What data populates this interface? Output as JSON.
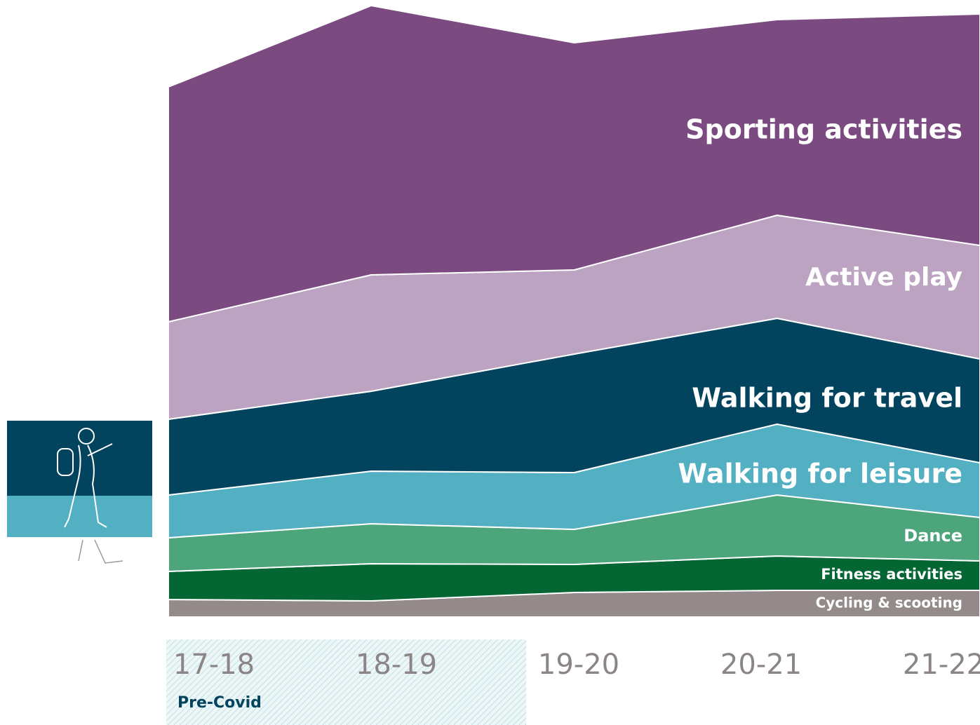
{
  "chart_data": {
    "type": "stacked-area",
    "categories": [
      "17-18",
      "18-19",
      "19-20",
      "20-21",
      "21-22"
    ],
    "ylim": [
      0,
      88
    ],
    "series": [
      {
        "name": "Cycling & scooting",
        "color": "#948a8a",
        "values": [
          2.5,
          2.3,
          3.5,
          3.8,
          3.8
        ]
      },
      {
        "name": "Fitness activities",
        "color": "#036633",
        "values": [
          4.0,
          5.3,
          4.0,
          4.9,
          4.2
        ]
      },
      {
        "name": "Dance",
        "color": "#4da57c",
        "values": [
          4.8,
          5.7,
          5.0,
          8.7,
          6.2
        ]
      },
      {
        "name": "Walking for leisure",
        "color": "#53afc2",
        "values": [
          6.1,
          7.5,
          8.1,
          10.1,
          7.8
        ]
      },
      {
        "name": "Walking for travel",
        "color": "#02435e",
        "values": [
          10.8,
          11.4,
          16.9,
          15.1,
          14.8
        ]
      },
      {
        "name": "Active play",
        "color": "#bba3c1",
        "values": [
          13.9,
          16.6,
          12.0,
          14.7,
          16.2
        ]
      },
      {
        "name": "Sporting activities",
        "color": "#7b4a80",
        "values": [
          33.5,
          38.4,
          32.4,
          27.9,
          33.0
        ]
      }
    ],
    "annotation": "Pre-Covid"
  }
}
